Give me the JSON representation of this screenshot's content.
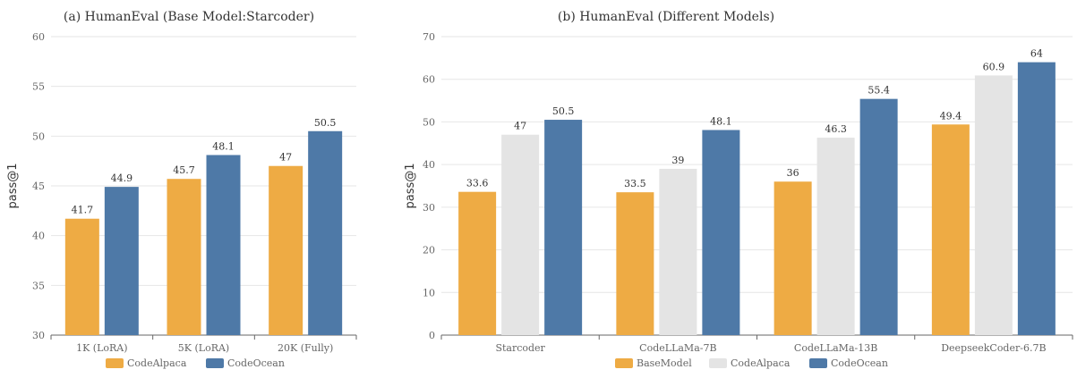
{
  "chart_data": [
    {
      "type": "bar",
      "title": "(a) HumanEval (Base Model:Starcoder)",
      "ylabel": "pass@1",
      "xlabel": "",
      "ylim": [
        30,
        60
      ],
      "yticks": [
        30,
        35,
        40,
        45,
        50,
        55,
        60
      ],
      "categories": [
        "1K (LoRA)",
        "5K (LoRA)",
        "20K (Fully)"
      ],
      "series": [
        {
          "name": "CodeAlpaca",
          "color": "#EEAB44",
          "values": [
            41.7,
            45.7,
            47
          ]
        },
        {
          "name": "CodeOcean",
          "color": "#4E79A7",
          "values": [
            44.9,
            48.1,
            50.5
          ]
        }
      ],
      "grid": true,
      "legend": "bottom-center"
    },
    {
      "type": "bar",
      "title": "(b) HumanEval (Different Models)",
      "ylabel": "pass@1",
      "xlabel": "",
      "ylim": [
        0,
        70
      ],
      "yticks": [
        0,
        10,
        20,
        30,
        40,
        50,
        60,
        70
      ],
      "categories": [
        "Starcoder",
        "CodeLLaMa-7B",
        "CodeLLaMa-13B",
        "DeepseekCoder-6.7B"
      ],
      "series": [
        {
          "name": "BaseModel",
          "color": "#EEAB44",
          "values": [
            33.6,
            33.5,
            36,
            49.4
          ]
        },
        {
          "name": "CodeAlpaca",
          "color": "#E4E4E4",
          "values": [
            47,
            39,
            46.3,
            60.9
          ]
        },
        {
          "name": "CodeOcean",
          "color": "#4E79A7",
          "values": [
            50.5,
            48.1,
            55.4,
            64
          ]
        }
      ],
      "grid": true,
      "legend": "bottom-center"
    }
  ]
}
